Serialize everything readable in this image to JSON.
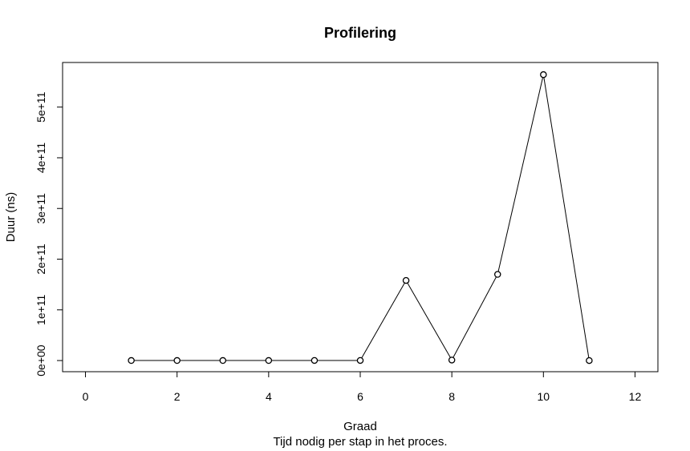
{
  "chart_data": {
    "type": "line",
    "title": "Profilering",
    "xlabel": "Graad",
    "subtitle": "Tijd nodig per stap in het proces.",
    "ylabel": "Duur (ns)",
    "xlim": [
      -0.5,
      12.5
    ],
    "ylim": [
      -22000000000,
      588000000000
    ],
    "x_ticks": [
      0,
      2,
      4,
      6,
      8,
      10,
      12
    ],
    "x_tick_labels": [
      "0",
      "2",
      "4",
      "6",
      "8",
      "10",
      "12"
    ],
    "y_ticks": [
      0,
      100000000000,
      200000000000,
      300000000000,
      400000000000,
      500000000000
    ],
    "y_tick_labels": [
      "0e+00",
      "1e+11",
      "2e+11",
      "3e+11",
      "4e+11",
      "5e+11"
    ],
    "grid": false,
    "series": [
      {
        "x": [
          1,
          2,
          3,
          4,
          5,
          6,
          7,
          8,
          9,
          10,
          11
        ],
        "values": [
          100000000,
          100000000,
          100000000,
          100000000,
          200000000,
          200000000,
          158000000000,
          1000000000,
          170000000000,
          564000000000,
          0
        ],
        "color": "#000000",
        "marker": "open-circle"
      }
    ]
  }
}
